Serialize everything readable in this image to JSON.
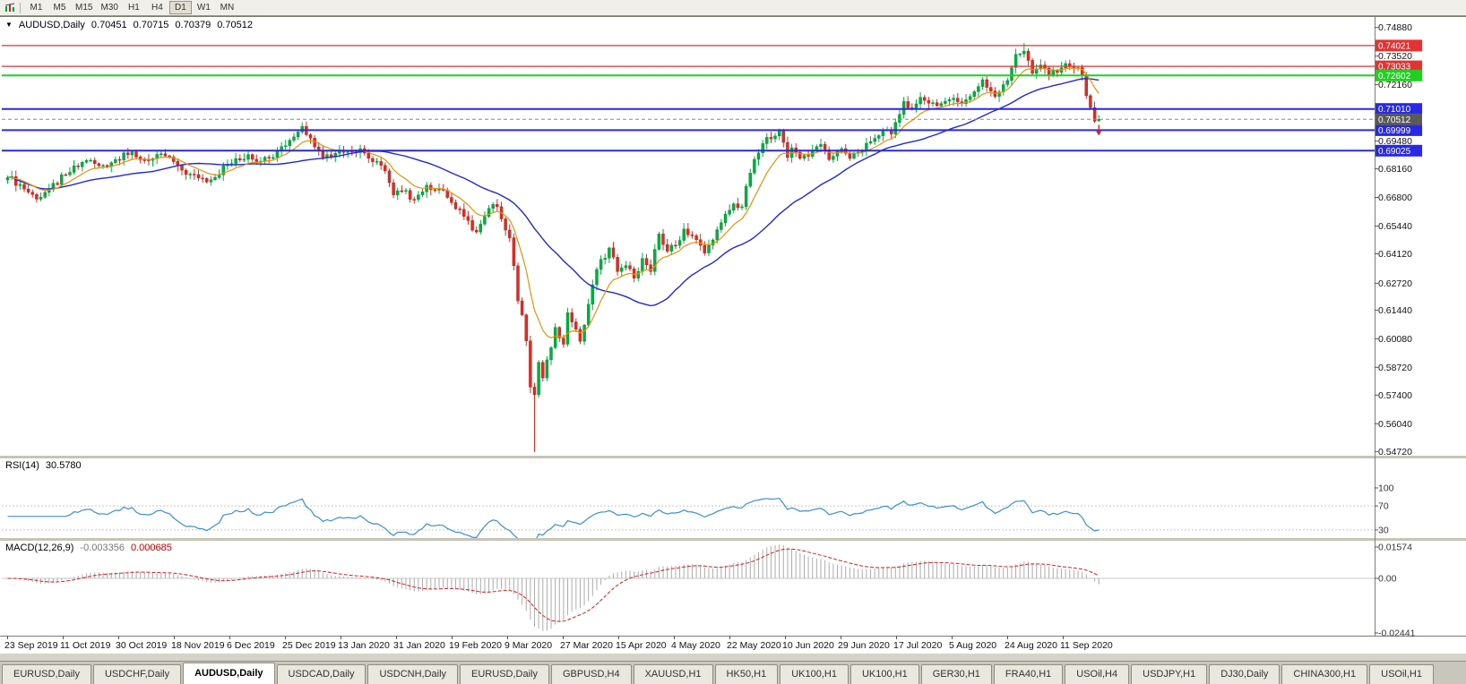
{
  "toolbar": {
    "timeframes": [
      "M1",
      "M5",
      "M15",
      "M30",
      "H1",
      "H4",
      "D1",
      "W1",
      "MN"
    ],
    "active_timeframe": "D1"
  },
  "tabs": {
    "items": [
      "EURUSD,Daily",
      "USDCHF,Daily",
      "AUDUSD,Daily",
      "USDCAD,Daily",
      "USDCNH,Daily",
      "EURUSD,Daily",
      "GBPUSD,H4",
      "XAUUSD,H1",
      "HK50,H1",
      "UK100,H1",
      "UK100,H1",
      "GER30,H1",
      "FRA40,H1",
      "USOil,H4",
      "USDJPY,H1",
      "DJ30,Daily",
      "CHINA300,H1",
      "USOil,H1"
    ],
    "active_index": 2
  },
  "chart_data": {
    "type": "candlestick",
    "symbol": "AUDUSD",
    "period": "Daily",
    "title": "AUDUSD,Daily",
    "ohlc": {
      "open": "0.70451",
      "high": "0.70715",
      "low": "0.70379",
      "close": "0.70512"
    },
    "y_axis": {
      "ticks": [
        "0.74880",
        "0.73520",
        "0.72160",
        "0.70800",
        "0.69480",
        "0.68160",
        "0.66800",
        "0.65440",
        "0.64120",
        "0.62720",
        "0.61440",
        "0.60080",
        "0.58720",
        "0.57400",
        "0.56040",
        "0.54720"
      ],
      "range": [
        0.5452,
        0.7538
      ]
    },
    "x_labels": [
      "23 Sep 2019",
      "11 Oct 2019",
      "30 Oct 2019",
      "18 Nov 2019",
      "6 Dec 2019",
      "25 Dec 2019",
      "13 Jan 2020",
      "31 Jan 2020",
      "19 Feb 2020",
      "9 Mar 2020",
      "27 Mar 2020",
      "15 Apr 2020",
      "4 May 2020",
      "22 May 2020",
      "10 Jun 2020",
      "29 Jun 2020",
      "17 Jul 2020",
      "5 Aug 2020",
      "24 Aug 2020",
      "11 Sep 2020"
    ],
    "bars": 264,
    "close_anchors": [
      [
        0,
        0.6775
      ],
      [
        3,
        0.6742
      ],
      [
        7,
        0.6672
      ],
      [
        10,
        0.6718
      ],
      [
        14,
        0.6788
      ],
      [
        19,
        0.6856
      ],
      [
        22,
        0.683
      ],
      [
        25,
        0.6845
      ],
      [
        28,
        0.6892
      ],
      [
        31,
        0.6872
      ],
      [
        34,
        0.6856
      ],
      [
        38,
        0.6878
      ],
      [
        41,
        0.6832
      ],
      [
        43,
        0.679
      ],
      [
        46,
        0.6772
      ],
      [
        49,
        0.6764
      ],
      [
        53,
        0.6838
      ],
      [
        56,
        0.6858
      ],
      [
        58,
        0.6884
      ],
      [
        61,
        0.6852
      ],
      [
        63,
        0.6868
      ],
      [
        65,
        0.6902
      ],
      [
        68,
        0.6952
      ],
      [
        71,
        0.7018
      ],
      [
        73,
        0.6962
      ],
      [
        76,
        0.687
      ],
      [
        79,
        0.689
      ],
      [
        82,
        0.69
      ],
      [
        85,
        0.6912
      ],
      [
        88,
        0.685
      ],
      [
        91,
        0.6806
      ],
      [
        93,
        0.6692
      ],
      [
        95,
        0.6712
      ],
      [
        98,
        0.667
      ],
      [
        101,
        0.6738
      ],
      [
        104,
        0.672
      ],
      [
        106,
        0.668
      ],
      [
        108,
        0.6626
      ],
      [
        110,
        0.659
      ],
      [
        113,
        0.6516
      ],
      [
        115,
        0.659
      ],
      [
        116,
        0.6628
      ],
      [
        118,
        0.6636
      ],
      [
        119,
        0.6578
      ],
      [
        121,
        0.6488
      ],
      [
        123,
        0.6188
      ],
      [
        124,
        0.6122
      ],
      [
        125,
        0.5998
      ],
      [
        126,
        0.5778
      ],
      [
        127,
        0.5742
      ],
      [
        128,
        0.5896
      ],
      [
        129,
        0.5822
      ],
      [
        130,
        0.5908
      ],
      [
        131,
        0.5966
      ],
      [
        132,
        0.6062
      ],
      [
        133,
        0.6012
      ],
      [
        134,
        0.5982
      ],
      [
        135,
        0.6132
      ],
      [
        136,
        0.6088
      ],
      [
        138,
        0.5996
      ],
      [
        140,
        0.6172
      ],
      [
        142,
        0.6338
      ],
      [
        145,
        0.644
      ],
      [
        147,
        0.6328
      ],
      [
        149,
        0.6356
      ],
      [
        151,
        0.6296
      ],
      [
        153,
        0.639
      ],
      [
        155,
        0.6328
      ],
      [
        157,
        0.6506
      ],
      [
        159,
        0.6424
      ],
      [
        161,
        0.6452
      ],
      [
        163,
        0.653
      ],
      [
        165,
        0.6498
      ],
      [
        168,
        0.6416
      ],
      [
        170,
        0.6478
      ],
      [
        172,
        0.656
      ],
      [
        175,
        0.665
      ],
      [
        177,
        0.6636
      ],
      [
        179,
        0.6796
      ],
      [
        181,
        0.6892
      ],
      [
        183,
        0.6966
      ],
      [
        186,
        0.6998
      ],
      [
        188,
        0.687
      ],
      [
        189,
        0.6916
      ],
      [
        191,
        0.6866
      ],
      [
        194,
        0.6902
      ],
      [
        196,
        0.6932
      ],
      [
        198,
        0.686
      ],
      [
        201,
        0.6912
      ],
      [
        203,
        0.6866
      ],
      [
        206,
        0.6902
      ],
      [
        208,
        0.6946
      ],
      [
        211,
        0.7
      ],
      [
        213,
        0.6982
      ],
      [
        216,
        0.7136
      ],
      [
        218,
        0.7104
      ],
      [
        220,
        0.7156
      ],
      [
        222,
        0.7128
      ],
      [
        224,
        0.7116
      ],
      [
        226,
        0.7138
      ],
      [
        228,
        0.7152
      ],
      [
        230,
        0.7126
      ],
      [
        232,
        0.716
      ],
      [
        235,
        0.724
      ],
      [
        237,
        0.7186
      ],
      [
        238,
        0.716
      ],
      [
        241,
        0.7236
      ],
      [
        243,
        0.736
      ],
      [
        245,
        0.7376
      ],
      [
        247,
        0.727
      ],
      [
        249,
        0.731
      ],
      [
        251,
        0.7262
      ],
      [
        252,
        0.7286
      ],
      [
        254,
        0.7296
      ],
      [
        256,
        0.7304
      ],
      [
        258,
        0.7298
      ],
      [
        259,
        0.726
      ],
      [
        260,
        0.7164
      ],
      [
        261,
        0.7108
      ],
      [
        262,
        0.7042
      ],
      [
        263,
        0.70512
      ]
    ],
    "extremes": {
      "high_bar": 245,
      "high": 0.7414,
      "low_bar": 127,
      "low": 0.547
    },
    "levels": [
      {
        "price": 0.74021,
        "label": "0.74021",
        "color": "#e23232",
        "width": 1.2
      },
      {
        "price": 0.73033,
        "label": "0.73033",
        "color": "#e23232",
        "width": 1.2
      },
      {
        "price": 0.72602,
        "label": "0.72602",
        "color": "#1fd11f",
        "width": 2
      },
      {
        "price": 0.7101,
        "label": "0.71010",
        "color": "#2828e6",
        "width": 2
      },
      {
        "price": 0.69999,
        "label": "0.69999",
        "color": "#2828e6",
        "width": 2
      },
      {
        "price": 0.69025,
        "label": "0.69025",
        "color": "#2828e6",
        "width": 2
      }
    ],
    "current_price": {
      "value": 0.70512,
      "label": "0.70512",
      "badge_color": "#5a5a5a"
    },
    "colors": {
      "up": "#00b140",
      "up_edge": "#00832e",
      "down": "#e32b20",
      "down_edge": "#a31512",
      "ma_fast": "#e8920a",
      "ma_slow": "#2429cf",
      "rsi_line": "#3c8fd0",
      "macd_hist": "#ababab",
      "macd_signal": "#d02020"
    },
    "moving_averages": [
      {
        "type": "EMA",
        "period": 10
      },
      {
        "type": "SMA",
        "period": 34
      }
    ],
    "rsi": {
      "label": "RSI(14)",
      "value": "30.5780",
      "period": 14,
      "levels": [
        100,
        70,
        30
      ],
      "level_labels": [
        "100",
        "70",
        "30"
      ]
    },
    "macd": {
      "label": "MACD(12,26,9)",
      "macd_value": "-0.003356",
      "signal_value": "0.000685",
      "y_labels": [
        "0.01574",
        "0.00",
        "-0.02441"
      ],
      "y_max": 0.01574,
      "y_min": -0.02441
    }
  }
}
